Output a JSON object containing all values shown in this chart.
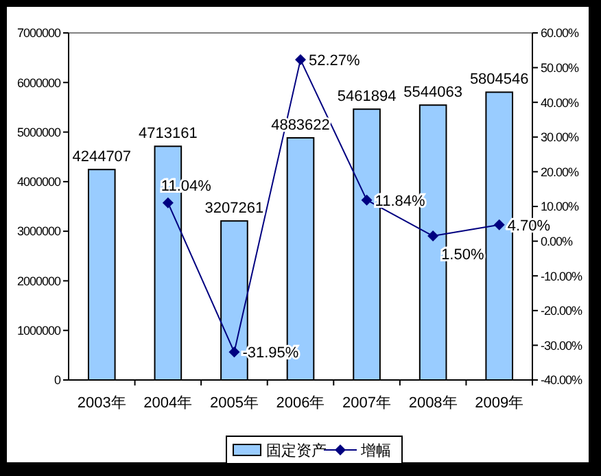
{
  "chart_data": {
    "type": "bar",
    "categories": [
      "2003年",
      "2004年",
      "2005年",
      "2006年",
      "2007年",
      "2008年",
      "2009年"
    ],
    "series": [
      {
        "name": "固定资产",
        "color": "#99ccff",
        "values": [
          4244707,
          4713161,
          3207261,
          4883622,
          5461894,
          5544063,
          5804546
        ]
      },
      {
        "name": "增幅",
        "type": "line",
        "axis": "y2",
        "color": "#000080",
        "marker": "diamond",
        "values": [
          null,
          11.04,
          -31.95,
          52.27,
          11.84,
          1.5,
          4.7
        ],
        "value_labels": [
          null,
          "11.04%",
          "-31.95%",
          "52.27%",
          "11.84%",
          "1.50%",
          "4.70%"
        ]
      }
    ],
    "ylim": [
      0,
      7000000
    ],
    "yticks": [
      0,
      1000000,
      2000000,
      3000000,
      4000000,
      5000000,
      6000000,
      7000000
    ],
    "y2lim": [
      -40,
      60
    ],
    "y2ticks": [
      {
        "value": -40,
        "label": "-40.00%"
      },
      {
        "value": -30,
        "label": "-30.00%"
      },
      {
        "value": -20,
        "label": "-20.00%"
      },
      {
        "value": -10,
        "label": "-10.00%"
      },
      {
        "value": 0,
        "label": "0.00%"
      },
      {
        "value": 10,
        "label": "10.00%"
      },
      {
        "value": 20,
        "label": "20.00%"
      },
      {
        "value": 30,
        "label": "30.00%"
      },
      {
        "value": 40,
        "label": "40.00%"
      },
      {
        "value": 50,
        "label": "50.00%"
      },
      {
        "value": 60,
        "label": "60.00%"
      }
    ],
    "data_labels": true,
    "legend": "bottom",
    "grid": false
  }
}
